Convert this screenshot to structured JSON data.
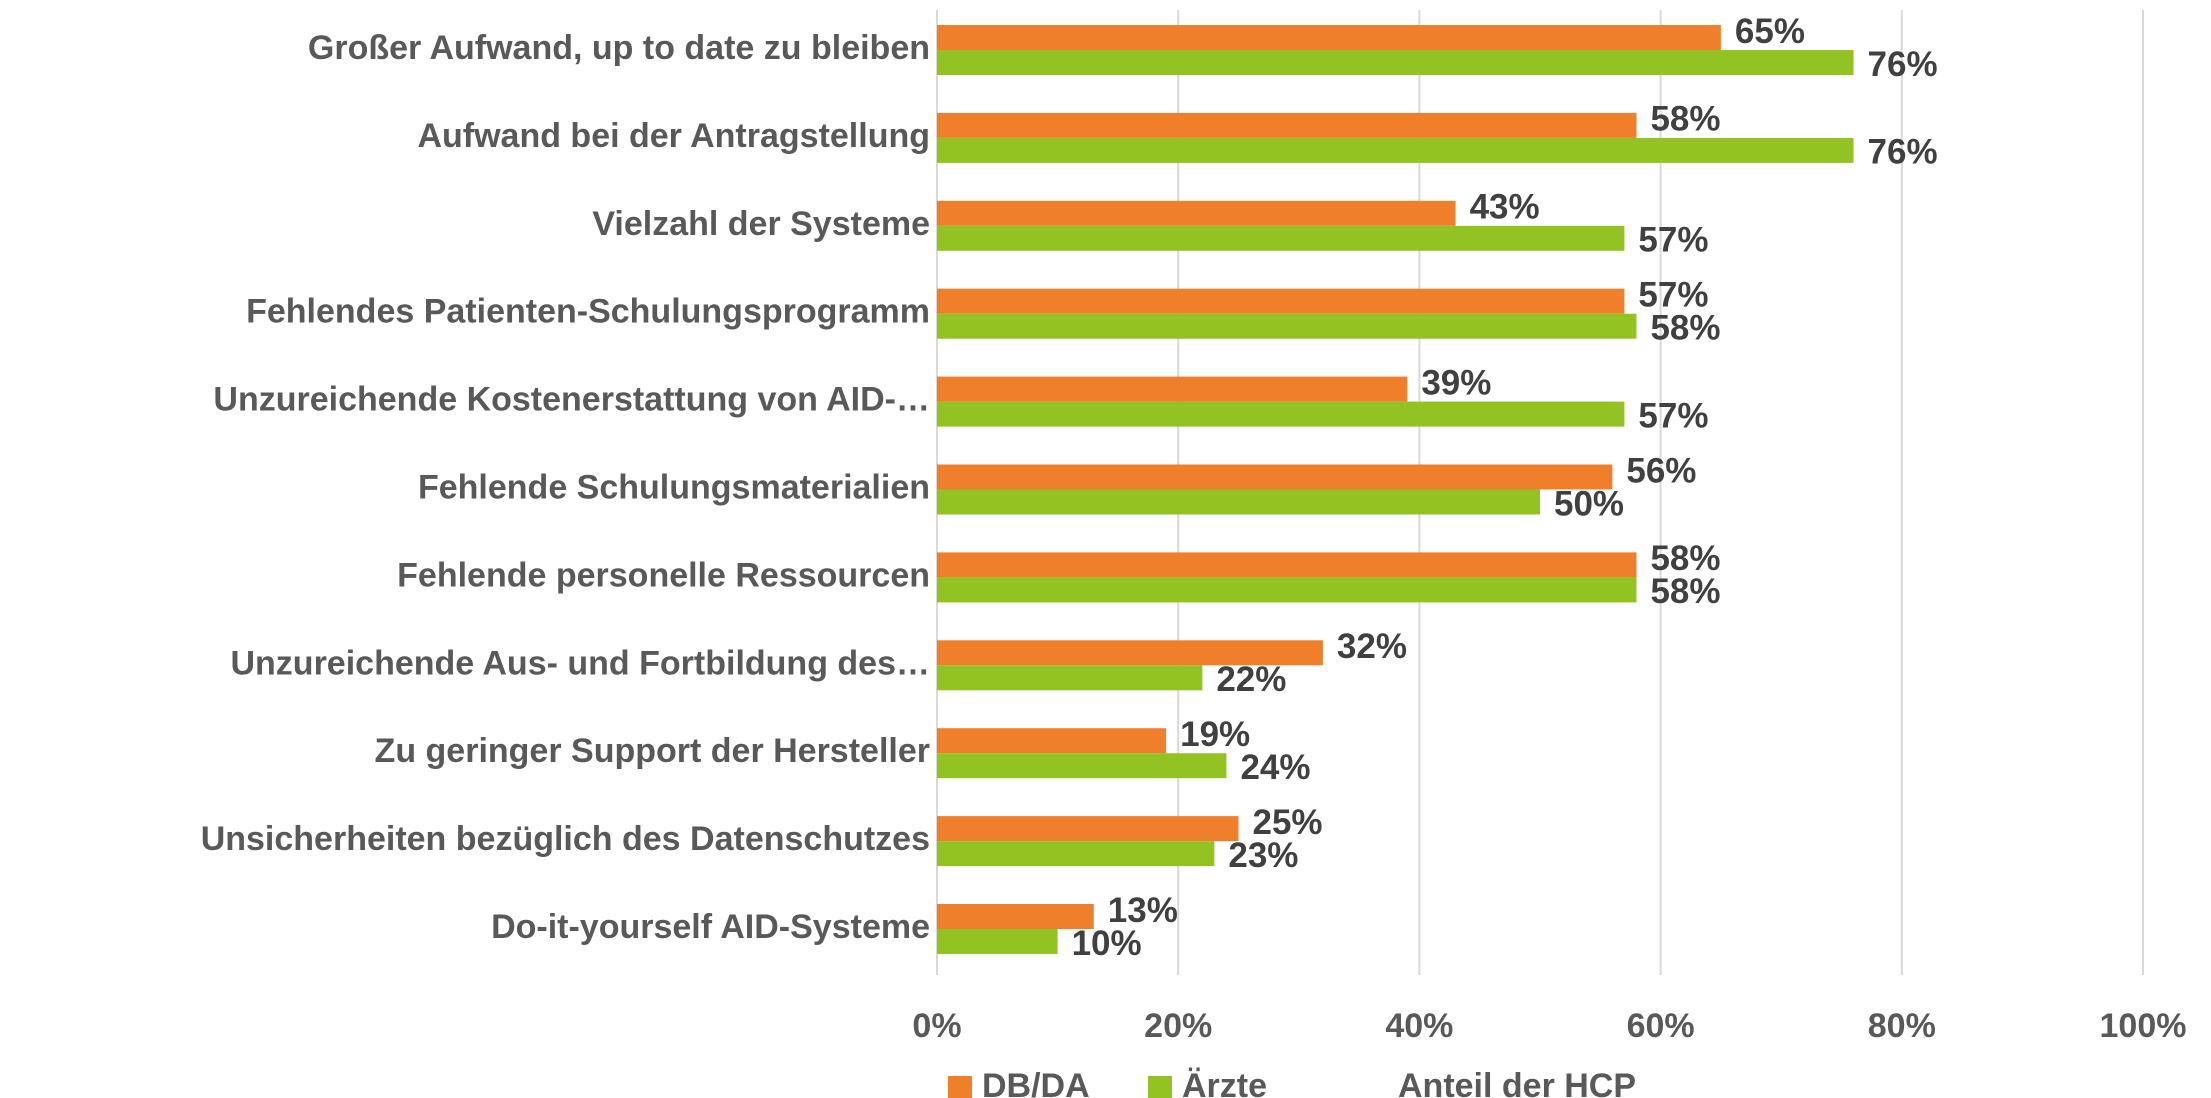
{
  "chart_data": {
    "type": "barh",
    "categories": [
      "Großer Aufwand, up to date zu bleiben",
      "Aufwand bei der Antragstellung",
      "Vielzahl der Systeme",
      "Fehlendes Patienten-Schulungsprogramm",
      "Unzureichende Kostenerstattung von AID-…",
      "Fehlende Schulungsmaterialien",
      "Fehlende personelle Ressourcen",
      "Unzureichende Aus- und Fortbildung des…",
      "Zu geringer Support der Hersteller",
      "Unsicherheiten bezüglich des Datenschutzes",
      "Do-it-yourself AID-Systeme"
    ],
    "series": [
      {
        "name": "DB/DA",
        "color": "#F07F2C",
        "values": [
          65,
          58,
          43,
          57,
          39,
          56,
          58,
          32,
          19,
          25,
          13
        ],
        "value_labels": [
          "65%",
          "58%",
          "43%",
          "57%",
          "39%",
          "56%",
          "58%",
          "32%",
          "19%",
          "25%",
          "13%"
        ]
      },
      {
        "name": "Ärzte",
        "color": "#92C322",
        "values": [
          76,
          76,
          57,
          58,
          57,
          50,
          58,
          22,
          24,
          23,
          10
        ],
        "value_labels": [
          "76%",
          "76%",
          "57%",
          "58%",
          "57%",
          "50%",
          "58%",
          "22%",
          "24%",
          "23%",
          "10%"
        ]
      }
    ],
    "xlabel": "Anteil der HCP",
    "xlim": [
      0,
      100
    ],
    "xticks": [
      {
        "value": 0,
        "label": "0%"
      },
      {
        "value": 20,
        "label": "20%"
      },
      {
        "value": 40,
        "label": "40%"
      },
      {
        "value": 60,
        "label": "60%"
      },
      {
        "value": 80,
        "label": "80%"
      },
      {
        "value": 100,
        "label": "100%"
      }
    ],
    "grid": true,
    "legend": "bottom"
  }
}
